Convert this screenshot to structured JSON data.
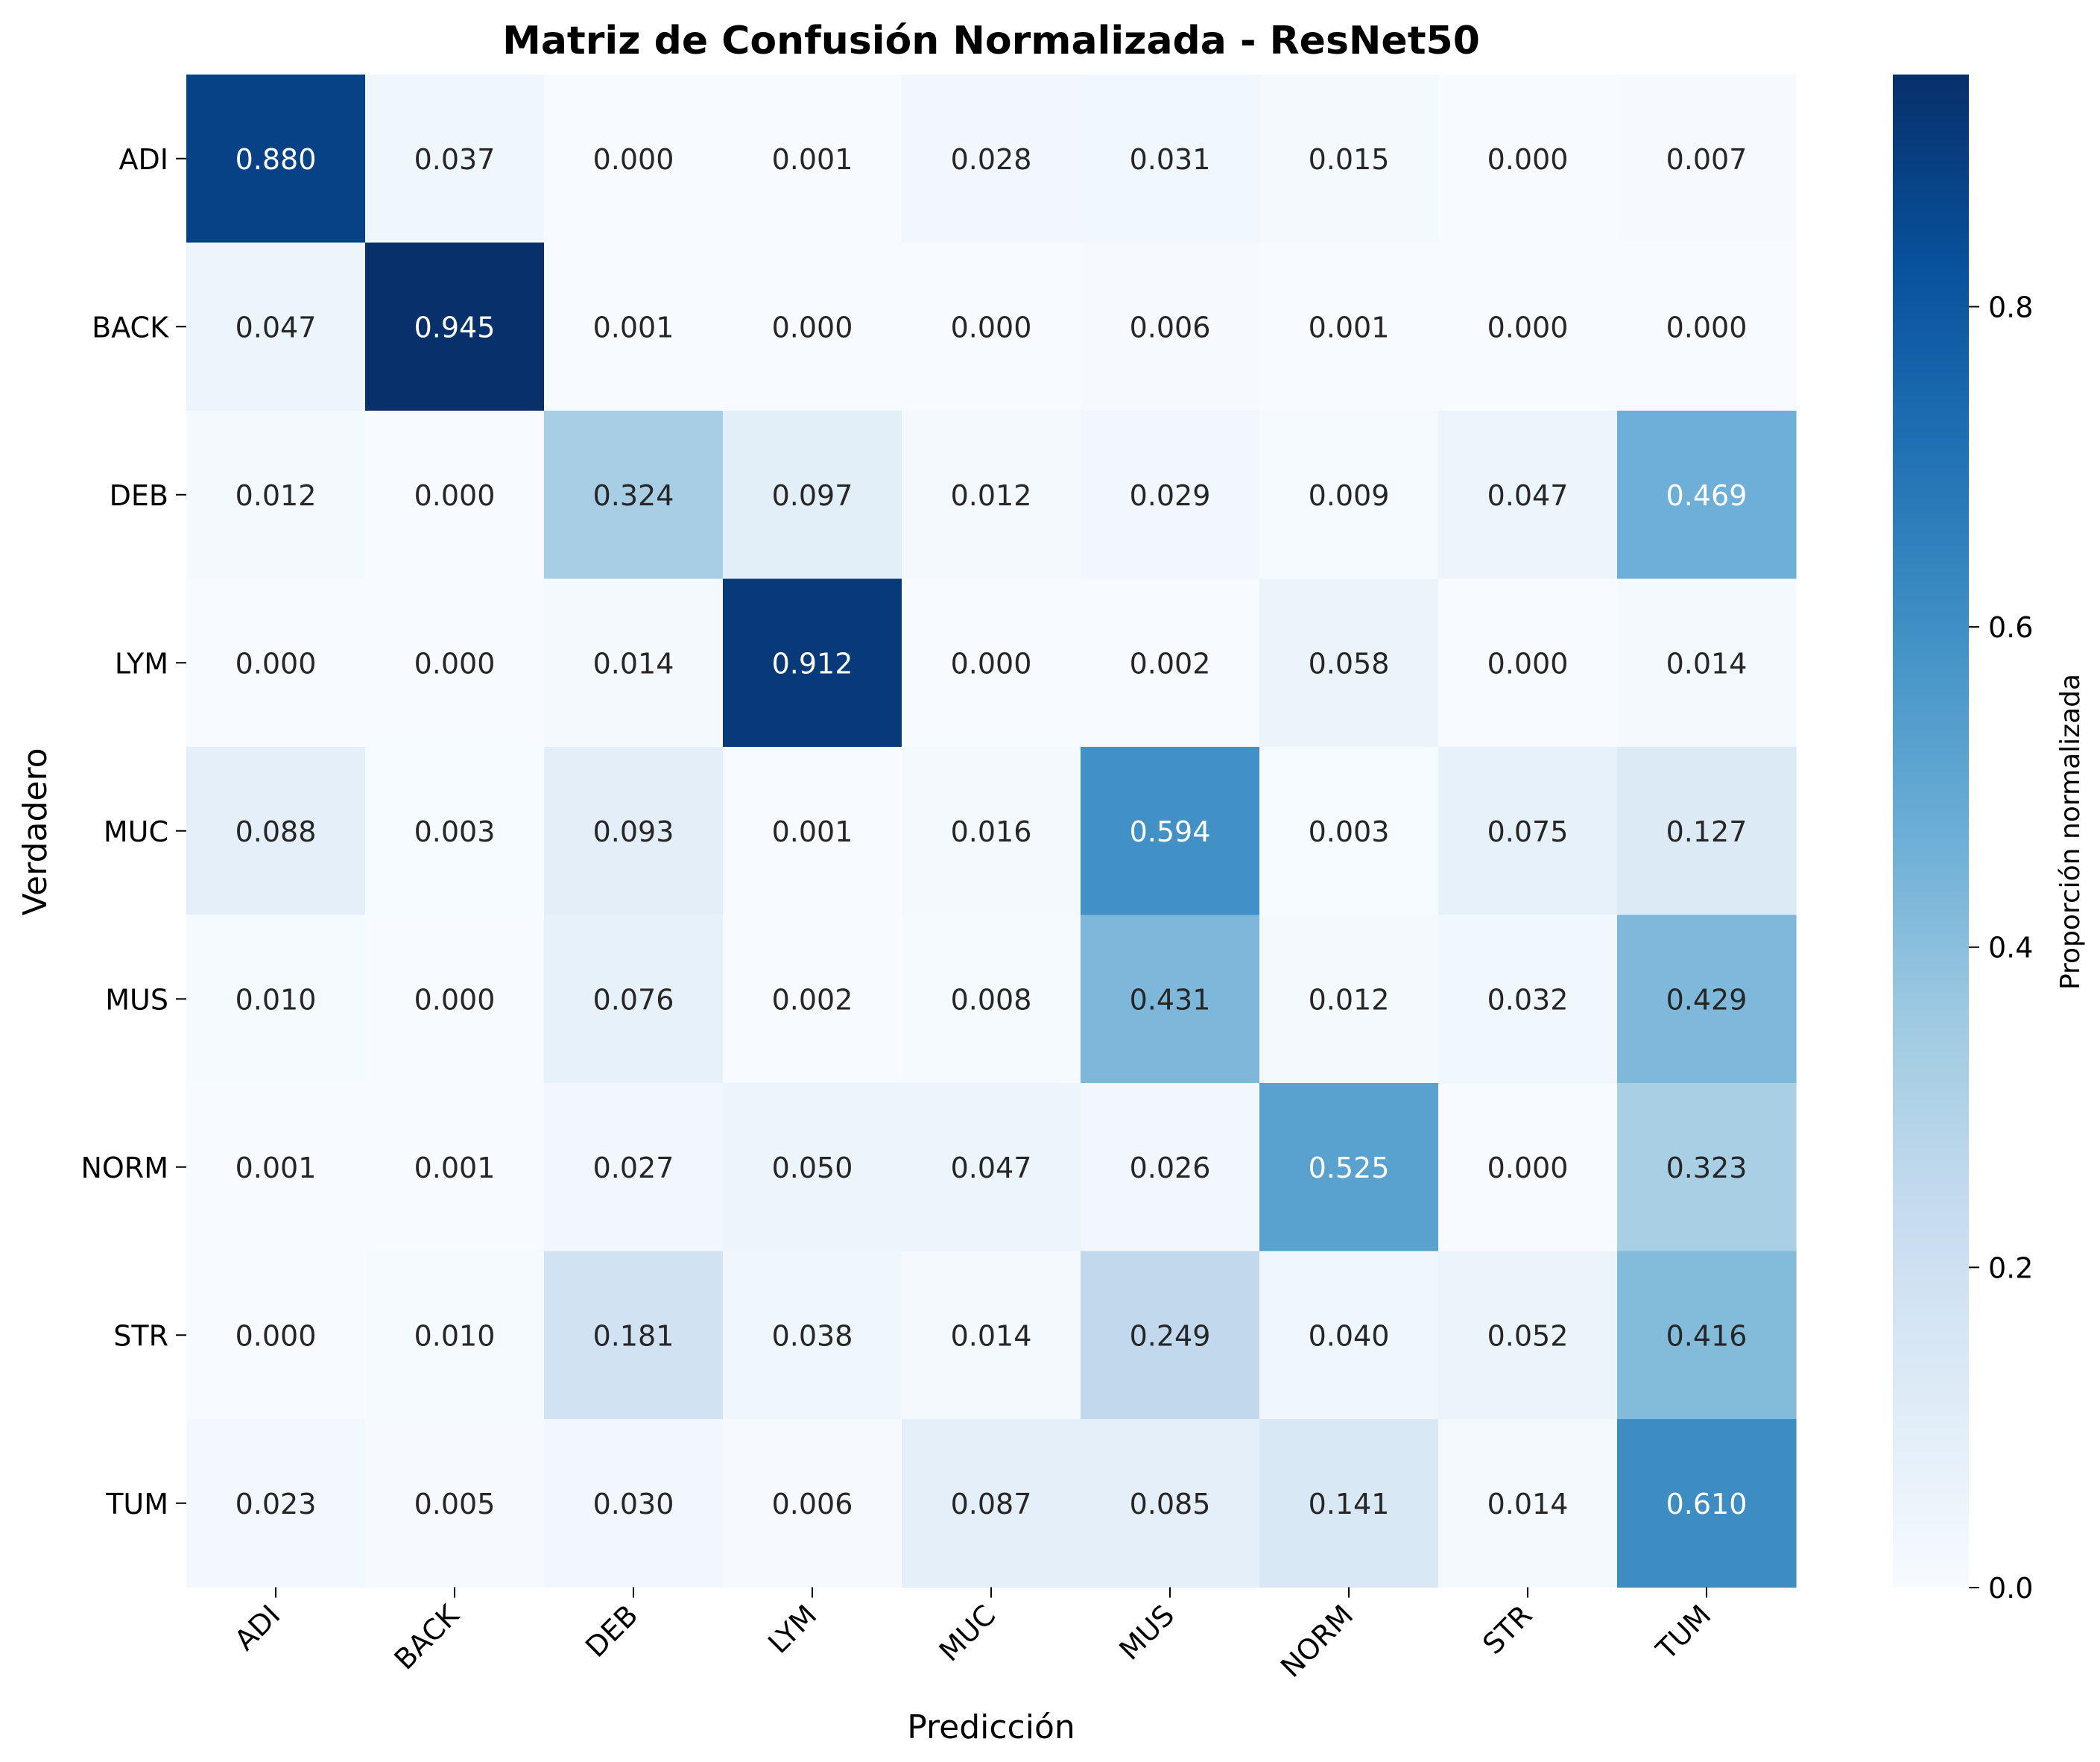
{
  "chart_data": {
    "type": "heatmap",
    "title": "Matriz de Confusión Normalizada - ResNet50",
    "xlabel": "Predicción",
    "ylabel": "Verdadero",
    "x_categories": [
      "ADI",
      "BACK",
      "DEB",
      "LYM",
      "MUC",
      "MUS",
      "NORM",
      "STR",
      "TUM"
    ],
    "y_categories": [
      "ADI",
      "BACK",
      "DEB",
      "LYM",
      "MUC",
      "MUS",
      "NORM",
      "STR",
      "TUM"
    ],
    "values": [
      [
        0.88,
        0.037,
        0.0,
        0.001,
        0.028,
        0.031,
        0.015,
        0.0,
        0.007
      ],
      [
        0.047,
        0.945,
        0.001,
        0.0,
        0.0,
        0.006,
        0.001,
        0.0,
        0.0
      ],
      [
        0.012,
        0.0,
        0.324,
        0.097,
        0.012,
        0.029,
        0.009,
        0.047,
        0.469
      ],
      [
        0.0,
        0.0,
        0.014,
        0.912,
        0.0,
        0.002,
        0.058,
        0.0,
        0.014
      ],
      [
        0.088,
        0.003,
        0.093,
        0.001,
        0.016,
        0.594,
        0.003,
        0.075,
        0.127
      ],
      [
        0.01,
        0.0,
        0.076,
        0.002,
        0.008,
        0.431,
        0.012,
        0.032,
        0.429
      ],
      [
        0.001,
        0.001,
        0.027,
        0.05,
        0.047,
        0.026,
        0.525,
        0.0,
        0.323
      ],
      [
        0.0,
        0.01,
        0.181,
        0.038,
        0.014,
        0.249,
        0.04,
        0.052,
        0.416
      ],
      [
        0.023,
        0.005,
        0.03,
        0.006,
        0.087,
        0.085,
        0.141,
        0.014,
        0.61
      ]
    ],
    "value_format": "0.000",
    "colormap": "Blues",
    "colorbar": {
      "label": "Proporción normalizada",
      "range": [
        0.0,
        0.945
      ],
      "ticks": [
        0.0,
        0.2,
        0.4,
        0.6,
        0.8
      ],
      "tick_labels": [
        "0.0",
        "0.2",
        "0.4",
        "0.6",
        "0.8"
      ]
    },
    "grid": false
  }
}
